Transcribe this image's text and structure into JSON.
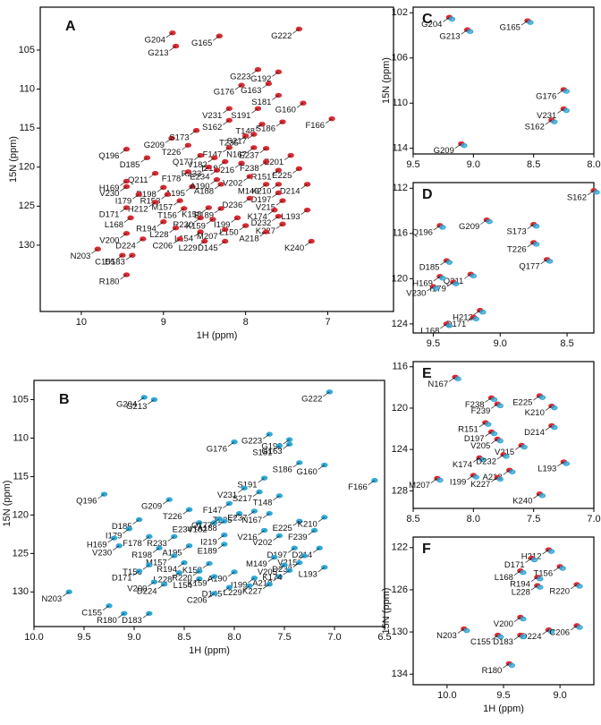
{
  "chart_data": [
    {
      "type": "scatter",
      "panel": "A",
      "xlabel": "1H  (ppm)",
      "ylabel": "15N  (ppm)",
      "xlim": [
        10.5,
        6.2
      ],
      "ylim": [
        99.5,
        138.5
      ],
      "xticks": [
        10,
        9,
        8,
        7
      ],
      "yticks": [
        105,
        110,
        115,
        120,
        125,
        130
      ],
      "colors": [
        "#d7262e"
      ],
      "labels": [
        "G204",
        "G213",
        "G165",
        "G222",
        "G176",
        "G223",
        "G192",
        "G163",
        "S181",
        "G160",
        "F166",
        "V231",
        "S191",
        "S162",
        "S186",
        "T148",
        "G209",
        "S173",
        "T235",
        "S217",
        "T226",
        "F147",
        "N167",
        "E237",
        "E201",
        "Q196",
        "D185",
        "Q177",
        "V182",
        "I219",
        "V216",
        "F238",
        "R233",
        "E234",
        "F178",
        "Q211",
        "R151",
        "E225",
        "H169",
        "V202",
        "M149",
        "A188",
        "V230",
        "R198",
        "A195",
        "A190",
        "K210",
        "D214",
        "D197",
        "I179",
        "R153",
        "H212",
        "M157",
        "D236",
        "V215",
        "D171",
        "T156",
        "K158",
        "E189",
        "K174",
        "D232",
        "L168",
        "I199",
        "L193",
        "R194",
        "R220",
        "K159",
        "L150",
        "K227",
        "L228",
        "L154",
        "M207",
        "A218",
        "D145",
        "L229",
        "K240",
        "V200",
        "D224",
        "C206",
        "N203",
        "C155",
        "D183",
        "R180"
      ],
      "x": [
        8.89,
        8.85,
        8.32,
        7.35,
        8.05,
        7.85,
        7.6,
        7.72,
        7.6,
        7.3,
        6.95,
        8.2,
        7.85,
        8.2,
        7.55,
        7.8,
        8.9,
        8.6,
        8.0,
        7.9,
        8.7,
        8.2,
        7.9,
        7.75,
        7.45,
        9.45,
        9.2,
        8.55,
        8.38,
        8.25,
        8.05,
        7.75,
        8.45,
        8.35,
        8.7,
        9.1,
        7.6,
        7.35,
        9.45,
        7.95,
        7.75,
        8.3,
        9.45,
        9.0,
        8.65,
        8.35,
        7.6,
        7.25,
        7.6,
        9.3,
        8.95,
        9.1,
        8.8,
        7.95,
        7.55,
        9.45,
        8.75,
        8.45,
        8.3,
        7.65,
        7.6,
        9.4,
        8.1,
        7.25,
        9.0,
        8.55,
        8.4,
        8.0,
        7.55,
        8.85,
        8.55,
        8.25,
        7.75,
        8.25,
        8.5,
        7.2,
        9.45,
        9.25,
        8.8,
        9.8,
        9.5,
        9.38,
        9.45
      ],
      "y": [
        102.8,
        104.5,
        103.2,
        102.3,
        109.5,
        107.5,
        107.8,
        109.3,
        110.8,
        111.8,
        113.8,
        112.5,
        112.5,
        114,
        114.2,
        114.5,
        116.3,
        115.3,
        116,
        115.8,
        117.2,
        117.5,
        117.5,
        117.6,
        118.5,
        117.7,
        118.8,
        118.5,
        118.8,
        119.3,
        119.5,
        119.3,
        120,
        120.4,
        120.6,
        120.8,
        120.4,
        120.2,
        121.8,
        121.2,
        122.2,
        122.2,
        122.5,
        122.6,
        122.5,
        121.6,
        122.2,
        122.2,
        123.3,
        123.5,
        123.5,
        124.5,
        124.3,
        124,
        124.3,
        125.2,
        125.3,
        125.2,
        125.3,
        125.5,
        126.3,
        126.5,
        126.5,
        125.5,
        127,
        126.5,
        126.7,
        127.5,
        127.3,
        127.8,
        128.3,
        128,
        128.3,
        129.5,
        129.5,
        129.5,
        128.5,
        129.2,
        129.2,
        130.5,
        131.3,
        131.3,
        133.8
      ]
    },
    {
      "type": "scatter",
      "panel": "B",
      "xlabel": "1H  (ppm)",
      "ylabel": "15N  (ppm)",
      "xlim": [
        10.0,
        6.5
      ],
      "ylim": [
        102.5,
        134.5
      ],
      "xticks": [
        {
          "value": 10,
          "label": "10.0"
        },
        9.5,
        {
          "value": 9,
          "label": "9.0"
        },
        8.5,
        {
          "value": 8,
          "label": "8.0"
        },
        7.5,
        {
          "value": 7,
          "label": "7.0"
        },
        6.5
      ],
      "yticks": [
        105,
        110,
        115,
        120,
        125,
        130
      ],
      "colors": [
        "#2aa7d6"
      ],
      "labels": [
        "G204",
        "G213",
        "G222",
        "G223",
        "G192",
        "G176",
        "S181",
        "G163",
        "S186",
        "G160",
        "S191",
        "V231",
        "S217",
        "T148",
        "F166",
        "Q196",
        "G209",
        "F147",
        "T226",
        "T235",
        "E237",
        "N167",
        "D185",
        "E234",
        "V182",
        "Q177",
        "A188",
        "E225",
        "K210",
        "I179",
        "F178",
        "R233",
        "V216",
        "F239",
        "H169",
        "I219",
        "V202",
        "V230",
        "R198",
        "A195",
        "E189",
        "D197",
        "D214",
        "M157",
        "M149",
        "V215",
        "T156",
        "D232",
        "V205",
        "L193",
        "D171",
        "L228",
        "R194",
        "K158",
        "R220",
        "A190",
        "A218",
        "K174",
        "L154",
        "K159",
        "I199",
        "K227",
        "V200",
        "D224",
        "D145",
        "L229",
        "C206",
        "N203",
        "C155",
        "R180",
        "D183"
      ],
      "x": [
        8.9,
        8.8,
        7.05,
        7.65,
        7.45,
        8.0,
        7.55,
        7.45,
        7.35,
        7.1,
        7.7,
        7.9,
        7.75,
        7.55,
        6.6,
        9.3,
        8.65,
        8.05,
        8.45,
        7.95,
        7.8,
        7.65,
        8.95,
        8.35,
        8.2,
        8.15,
        8.1,
        7.35,
        7.1,
        9.05,
        8.85,
        8.6,
        7.7,
        7.2,
        9.2,
        8.1,
        7.55,
        9.15,
        8.75,
        8.45,
        8.1,
        7.4,
        7.15,
        8.6,
        7.6,
        7.3,
        8.85,
        7.35,
        7.5,
        7.1,
        8.95,
        8.55,
        8.5,
        8.25,
        8.35,
        8.0,
        7.55,
        7.45,
        8.35,
        8.2,
        7.8,
        7.65,
        8.8,
        8.7,
        8.05,
        7.85,
        8.2,
        9.65,
        9.25,
        9.1,
        8.85
      ],
      "y": [
        104.7,
        105,
        104,
        109.5,
        110.2,
        110.5,
        111,
        110.8,
        113.2,
        113.5,
        115.2,
        116.5,
        117,
        117.5,
        115.5,
        117.3,
        118,
        118.5,
        119.3,
        119.8,
        119.5,
        119.8,
        120.6,
        121,
        121,
        120.5,
        120.8,
        120.8,
        120.3,
        121.8,
        122.8,
        122.8,
        122,
        122,
        123,
        122.6,
        122.7,
        124,
        124.3,
        124,
        123.8,
        124.3,
        124.3,
        125.3,
        125.5,
        125.3,
        126.5,
        126.2,
        126.5,
        126.8,
        127.3,
        127.5,
        126.2,
        126.3,
        127.3,
        127.4,
        128,
        127.2,
        128.3,
        128,
        128.2,
        129,
        128.7,
        129,
        129.4,
        129.2,
        130.2,
        130,
        131.8,
        132.8,
        132.8
      ]
    },
    {
      "type": "scatter",
      "panel": "C",
      "ylabel": "15N  (ppm)",
      "xlim": [
        9.5,
        8.0
      ],
      "ylim": [
        101.5,
        114.5
      ],
      "xticks": [
        9.5,
        {
          "value": 9,
          "label": "9.0"
        },
        8.5,
        {
          "value": 8,
          "label": "8.0"
        }
      ],
      "yticks": [
        102,
        106,
        110,
        114
      ],
      "colors": [
        "#d7262e",
        "#2aa7d6"
      ],
      "labels": [
        "G204",
        "G213",
        "G165",
        "G176",
        "V231",
        "S162",
        "G209"
      ],
      "x": [
        9.2,
        9.05,
        8.55,
        8.25,
        8.25,
        8.35,
        9.1
      ],
      "y": [
        102.4,
        103.5,
        102.7,
        108.8,
        110.5,
        111.5,
        113.6
      ]
    },
    {
      "type": "scatter",
      "panel": "D",
      "xlim": [
        9.65,
        8.3
      ],
      "ylim": [
        111.5,
        124.8
      ],
      "xticks": [
        9.5,
        {
          "value": 9,
          "label": "9.0"
        },
        8.5
      ],
      "yticks": [
        112,
        116,
        120,
        124
      ],
      "colors": [
        "#d7262e",
        "#2aa7d6"
      ],
      "labels": [
        "S162",
        "G209",
        "S173",
        "Q196",
        "T226",
        "D185",
        "Q211",
        "Q177",
        "H169",
        "I179",
        "V230",
        "H212",
        "D171",
        "L168"
      ],
      "x": [
        8.3,
        9.1,
        8.75,
        9.45,
        8.75,
        9.4,
        9.22,
        8.65,
        9.45,
        9.35,
        9.5,
        9.15,
        9.2,
        9.4
      ],
      "y": [
        112.2,
        114.8,
        115.2,
        115.3,
        116.8,
        118.4,
        119.6,
        118.3,
        119.8,
        120.3,
        120.7,
        122.8,
        123.4,
        124
      ]
    },
    {
      "type": "scatter",
      "panel": "E",
      "xlim": [
        8.5,
        7.0
      ],
      "ylim": [
        115.5,
        129.7
      ],
      "xticks": [
        8.5,
        {
          "value": 8,
          "label": "8.0"
        },
        7.5,
        {
          "value": 7,
          "label": "7.0"
        }
      ],
      "yticks": [
        116,
        120,
        124,
        128
      ],
      "colors": [
        "#d7262e",
        "#2aa7d6"
      ],
      "labels": [
        "N167",
        "E225",
        "F238",
        "F239",
        "K210",
        "R151",
        "D197",
        "D214",
        "V205",
        "V215",
        "K174",
        "D232",
        "L193",
        "A218",
        "I199",
        "K227",
        "M207",
        "K240"
      ],
      "x": [
        8.15,
        7.45,
        7.85,
        7.8,
        7.35,
        7.9,
        7.85,
        7.35,
        7.8,
        7.6,
        7.95,
        7.75,
        7.25,
        7.7,
        8.0,
        7.8,
        8.3,
        7.45
      ],
      "y": [
        117,
        118.8,
        119,
        119.6,
        119.8,
        121.4,
        122.3,
        121.7,
        123,
        123.6,
        124.8,
        124.5,
        125.2,
        126,
        126.5,
        126.7,
        126.8,
        128.3
      ]
    },
    {
      "type": "scatter",
      "panel": "F",
      "xlabel": "1H  (ppm)",
      "ylabel": "15N  (ppm)",
      "xlim": [
        10.3,
        8.7
      ],
      "ylim": [
        121,
        135
      ],
      "xticks": [
        {
          "value": 10,
          "label": "10.0"
        },
        9.5,
        {
          "value": 9,
          "label": "9.0"
        }
      ],
      "yticks": [
        122,
        126,
        130,
        134
      ],
      "colors": [
        "#d7262e",
        "#2aa7d6"
      ],
      "labels": [
        "H212",
        "D171",
        "T156",
        "L168",
        "R194",
        "L228",
        "R220",
        "V200",
        "N203",
        "D224",
        "C206",
        "C155",
        "D183",
        "R180"
      ],
      "x": [
        9.1,
        9.25,
        9.0,
        9.35,
        9.2,
        9.2,
        8.85,
        9.35,
        9.85,
        9.1,
        8.85,
        9.55,
        9.35,
        9.45
      ],
      "y": [
        122.2,
        123,
        123.8,
        124.2,
        124.8,
        125.6,
        125.5,
        128.6,
        129.7,
        129.8,
        129.4,
        130.3,
        130.3,
        133
      ]
    }
  ]
}
